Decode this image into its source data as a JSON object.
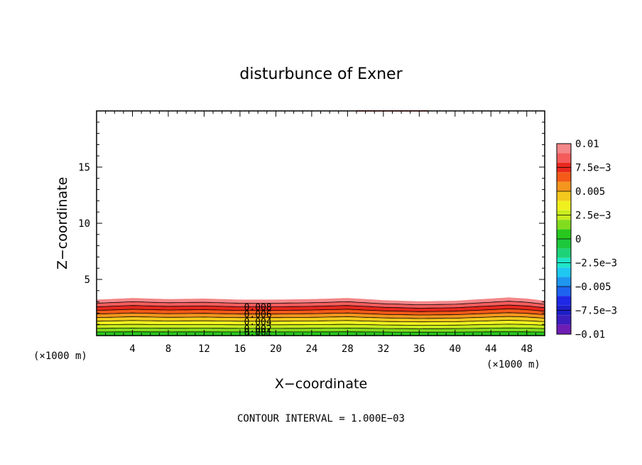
{
  "chart_data": {
    "type": "heatmap",
    "title": "disturbunce of Exner",
    "xlabel": "X−coordinate",
    "ylabel": "Z−coordinate",
    "x_unit_left": "(×1000 m)",
    "x_unit_right": "(×1000 m)",
    "xlim": [
      0,
      50
    ],
    "ylim": [
      0,
      20
    ],
    "x_ticks": [
      4,
      8,
      12,
      16,
      20,
      24,
      28,
      32,
      36,
      40,
      44,
      48
    ],
    "y_ticks": [
      5,
      10,
      15
    ],
    "footer": "CONTOUR INTERVAL = 1.000E−03",
    "colorbar": {
      "labels": [
        "0.01",
        "7.5e−3",
        "0.005",
        "2.5e−3",
        "0",
        "−2.5e−3",
        "−0.005",
        "−7.5e−3",
        "−0.01"
      ],
      "label_values": [
        0.01,
        0.0075,
        0.005,
        0.0025,
        0,
        -0.0025,
        -0.005,
        -0.0075,
        -0.01
      ],
      "bands": [
        {
          "from": 0.009,
          "to": 0.01,
          "color": "#f4878a"
        },
        {
          "from": 0.008,
          "to": 0.009,
          "color": "#f45c5c"
        },
        {
          "from": 0.007,
          "to": 0.008,
          "color": "#e8281e"
        },
        {
          "from": 0.006,
          "to": 0.007,
          "color": "#f45a18"
        },
        {
          "from": 0.005,
          "to": 0.006,
          "color": "#f4961e"
        },
        {
          "from": 0.004,
          "to": 0.005,
          "color": "#f4c81e"
        },
        {
          "from": 0.003,
          "to": 0.004,
          "color": "#f0f01e"
        },
        {
          "from": 0.002,
          "to": 0.003,
          "color": "#c8ec1e"
        },
        {
          "from": 0.001,
          "to": 0.002,
          "color": "#82dc1e"
        },
        {
          "from": 0.0,
          "to": 0.001,
          "color": "#28c81e"
        },
        {
          "from": -0.001,
          "to": 0.0,
          "color": "#1ec83c"
        },
        {
          "from": -0.002,
          "to": -0.001,
          "color": "#1ed278"
        },
        {
          "from": -0.003,
          "to": -0.002,
          "color": "#1ee6c8"
        },
        {
          "from": -0.004,
          "to": -0.003,
          "color": "#1ec8f0"
        },
        {
          "from": -0.005,
          "to": -0.004,
          "color": "#1e96f0"
        },
        {
          "from": -0.006,
          "to": -0.005,
          "color": "#1e64f0"
        },
        {
          "from": -0.007,
          "to": -0.006,
          "color": "#1e28e6"
        },
        {
          "from": -0.008,
          "to": -0.007,
          "color": "#1e1ec8"
        },
        {
          "from": -0.009,
          "to": -0.008,
          "color": "#3c1ebe"
        },
        {
          "from": -0.01,
          "to": -0.009,
          "color": "#6e1eb4"
        }
      ]
    },
    "contour_labels": [
      "0.008",
      "0.006",
      "0.004",
      "0.002",
      "0.001"
    ],
    "contour_label_levels": [
      0.008,
      0.006,
      0.004,
      0.002,
      0.001
    ],
    "contour_label_x": 18,
    "contour_profile": {
      "x": [
        0,
        4,
        8,
        12,
        16,
        20,
        24,
        28,
        32,
        36,
        40,
        44,
        46,
        48,
        50
      ],
      "top_height": [
        3.2,
        3.35,
        3.25,
        3.3,
        3.2,
        3.2,
        3.25,
        3.35,
        3.15,
        3.05,
        3.1,
        3.3,
        3.4,
        3.3,
        3.1
      ]
    }
  }
}
